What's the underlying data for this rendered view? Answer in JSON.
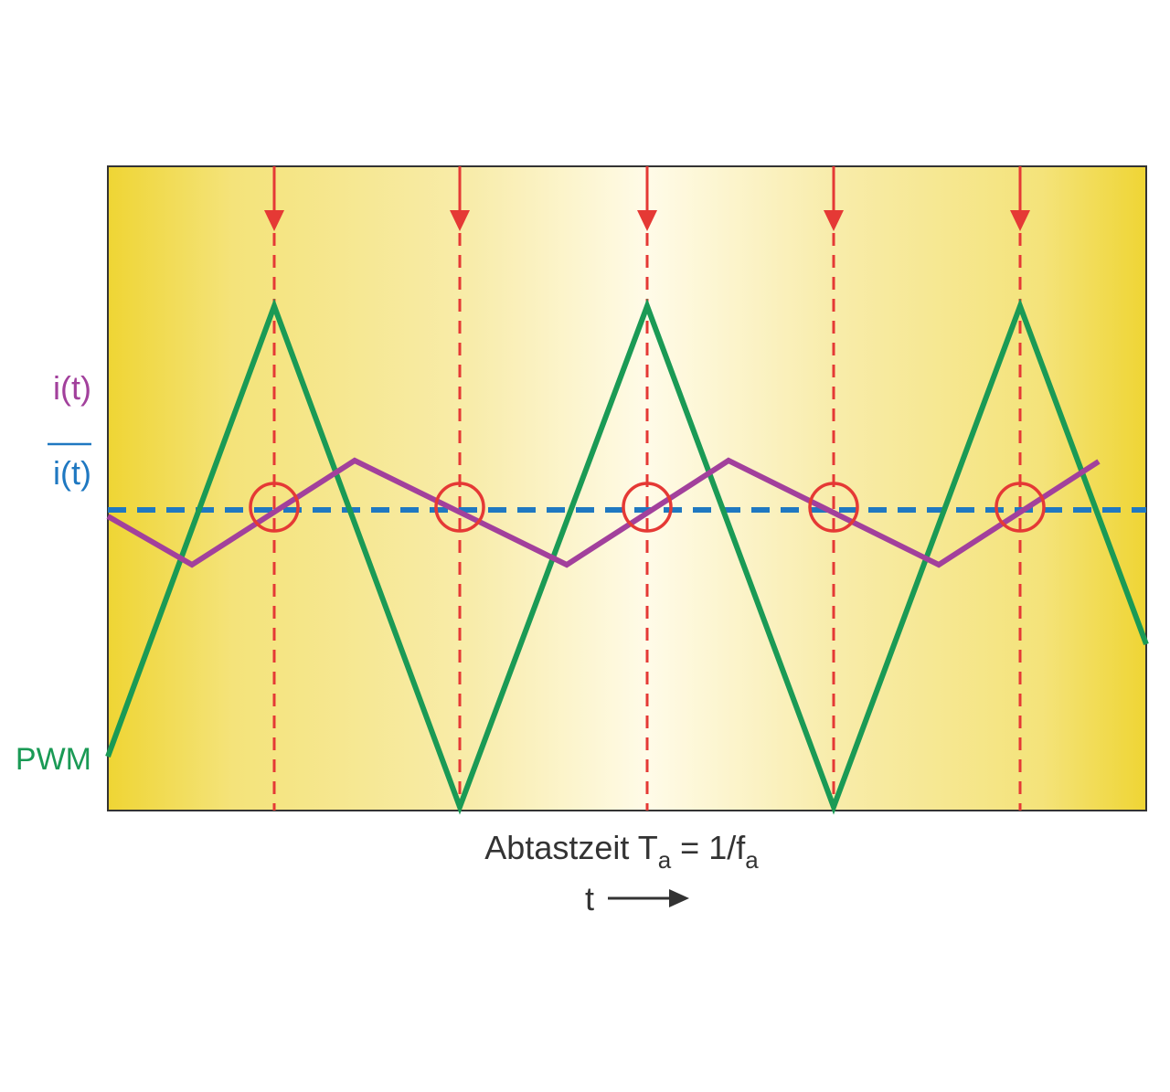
{
  "labels": {
    "current": "i(t)",
    "mean_current": "i(t)",
    "pwm": "PWM"
  },
  "caption": {
    "text": "Abtastzeit T",
    "sub1": "a",
    "equals": " = 1/f",
    "sub2": "a"
  },
  "time_axis": "t"
}
